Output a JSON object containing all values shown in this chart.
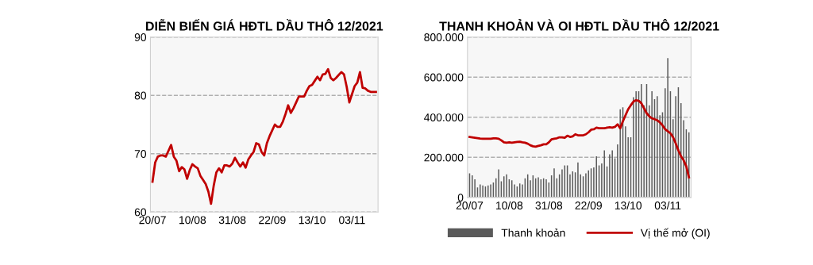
{
  "chart_data": [
    {
      "type": "line",
      "title": "DIỄN BIẾN GIÁ HĐTL DẦU THÔ 12/2021",
      "categories": [
        "20/07",
        null,
        null,
        null,
        null,
        null,
        null,
        null,
        null,
        null,
        null,
        null,
        null,
        null,
        null,
        "10/08",
        null,
        null,
        null,
        null,
        null,
        null,
        null,
        null,
        null,
        null,
        null,
        null,
        null,
        null,
        "31/08",
        null,
        null,
        null,
        null,
        null,
        null,
        null,
        null,
        null,
        null,
        null,
        null,
        null,
        null,
        "22/09",
        null,
        null,
        null,
        null,
        null,
        null,
        null,
        null,
        null,
        null,
        null,
        null,
        null,
        null,
        "13/10",
        null,
        null,
        null,
        null,
        null,
        null,
        null,
        null,
        null,
        null,
        null,
        null,
        null,
        null,
        "03/11",
        null,
        null,
        null,
        null,
        null,
        null,
        null,
        null,
        null
      ],
      "series": [
        {
          "color": "#c00000",
          "values": [
            65.2,
            68.5,
            69.5,
            69.7,
            69.7,
            69.5,
            70.5,
            71.5,
            69.5,
            68.8,
            67,
            67.7,
            67.3,
            65.7,
            67.2,
            68.2,
            67.8,
            67.5,
            66.2,
            65.5,
            64.8,
            63.5,
            61.4,
            64.5,
            66.8,
            67.5,
            66.8,
            68,
            68,
            67.8,
            68.3,
            69.3,
            68.5,
            67.8,
            68.5,
            67.6,
            69,
            69.7,
            70.3,
            71.8,
            71.6,
            70.3,
            69.7,
            71.8,
            73,
            74,
            75,
            74.6,
            74.6,
            75.5,
            76.8,
            78.3,
            77,
            77.8,
            78.8,
            79.8,
            79.8,
            79.8,
            80.8,
            81.6,
            81.8,
            82.5,
            83.2,
            82.6,
            83.6,
            83.7,
            84.5,
            83,
            82.6,
            83,
            83.5,
            84,
            83.6,
            81.5,
            78.8,
            80.2,
            81.6,
            82.2,
            84,
            81.3,
            81.2,
            80.8,
            80.6,
            80.6,
            80.6
          ]
        }
      ],
      "ylim": [
        60,
        90
      ],
      "yticks": [
        60,
        70,
        80,
        90
      ],
      "grid": "y",
      "legend": false,
      "line_style": "solid",
      "marker": "none"
    },
    {
      "type": "bar",
      "title": "THANH KHOẢN VÀ OI HĐTL DẦU THÔ 12/2021",
      "categories": [
        "20/07",
        null,
        null,
        null,
        null,
        null,
        null,
        null,
        null,
        null,
        null,
        null,
        null,
        null,
        null,
        "10/08",
        null,
        null,
        null,
        null,
        null,
        null,
        null,
        null,
        null,
        null,
        null,
        null,
        null,
        null,
        "31/08",
        null,
        null,
        null,
        null,
        null,
        null,
        null,
        null,
        null,
        null,
        null,
        null,
        null,
        null,
        "22/09",
        null,
        null,
        null,
        null,
        null,
        null,
        null,
        null,
        null,
        null,
        null,
        null,
        null,
        null,
        "13/10",
        null,
        null,
        null,
        null,
        null,
        null,
        null,
        null,
        null,
        null,
        null,
        null,
        null,
        null,
        "03/11",
        null,
        null,
        null,
        null,
        null,
        null,
        null,
        null
      ],
      "series": [
        {
          "name": "Thanh khoản",
          "type": "bar",
          "color": "#5a5a5a",
          "values": [
            120000,
            110000,
            90000,
            50000,
            65000,
            60000,
            55000,
            60000,
            65000,
            75000,
            95000,
            140000,
            80000,
            105000,
            115000,
            90000,
            85000,
            65000,
            55000,
            70000,
            65000,
            95000,
            115000,
            85000,
            110000,
            95000,
            100000,
            90000,
            95000,
            90000,
            75000,
            110000,
            145000,
            95000,
            115000,
            140000,
            160000,
            160000,
            115000,
            130000,
            125000,
            175000,
            115000,
            105000,
            120000,
            135000,
            145000,
            150000,
            205000,
            160000,
            170000,
            235000,
            155000,
            215000,
            235000,
            195000,
            265000,
            440000,
            450000,
            355000,
            300000,
            300000,
            500000,
            530000,
            530000,
            565000,
            460000,
            565000,
            460000,
            530000,
            490000,
            505000,
            410000,
            425000,
            545000,
            695000,
            530000,
            390000,
            505000,
            550000,
            470000,
            385000,
            340000,
            325000
          ]
        },
        {
          "name": "Vị thế mở (OI)",
          "type": "line",
          "color": "#c00000",
          "values": [
            302000,
            300000,
            298000,
            296000,
            294000,
            293000,
            293000,
            293000,
            293000,
            295000,
            295000,
            293000,
            285000,
            275000,
            273000,
            275000,
            273000,
            275000,
            277000,
            278000,
            275000,
            273000,
            268000,
            260000,
            255000,
            253000,
            257000,
            260000,
            265000,
            265000,
            275000,
            290000,
            293000,
            295000,
            300000,
            300000,
            298000,
            308000,
            302000,
            305000,
            315000,
            310000,
            310000,
            310000,
            315000,
            325000,
            338000,
            340000,
            348000,
            345000,
            345000,
            345000,
            348000,
            350000,
            348000,
            352000,
            365000,
            345000,
            380000,
            410000,
            440000,
            460000,
            478000,
            485000,
            482000,
            470000,
            445000,
            420000,
            405000,
            395000,
            390000,
            385000,
            375000,
            360000,
            340000,
            330000,
            320000,
            300000,
            270000,
            235000,
            205000,
            185000,
            155000,
            100000
          ]
        }
      ],
      "ylim": [
        0,
        800000
      ],
      "yticks": [
        0,
        {
          "value": 200000,
          "label": "200.000"
        },
        {
          "value": 400000,
          "label": "400.000"
        },
        {
          "value": 600000,
          "label": "600.000"
        },
        {
          "value": 800000,
          "label": "800.000"
        }
      ],
      "grid": "y",
      "legend": "bottom",
      "line_style": "solid",
      "marker": "none"
    }
  ]
}
